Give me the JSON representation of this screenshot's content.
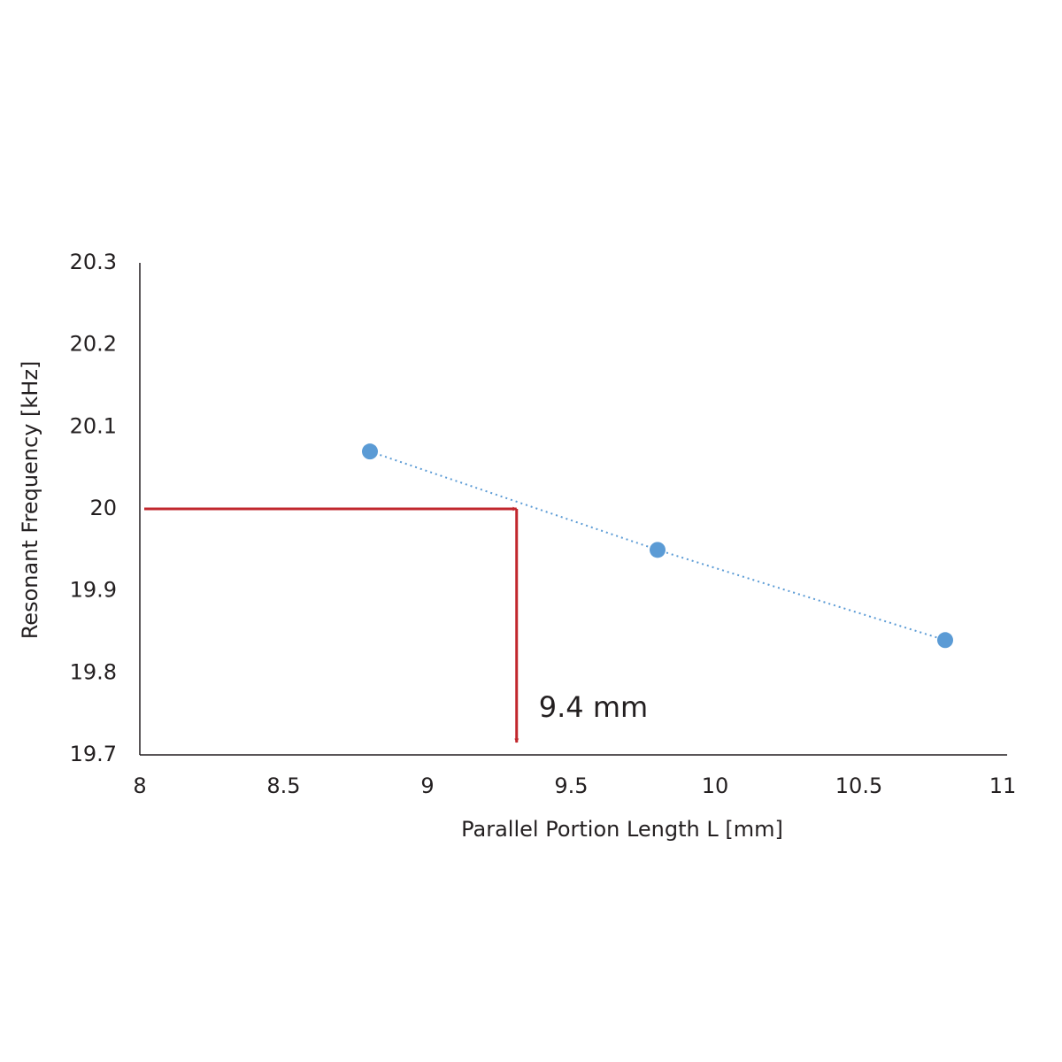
{
  "chart_data": {
    "type": "scatter",
    "x_label": "Parallel Portion Length L [mm]",
    "y_label": "Resonant Frequency [kHz]",
    "series": [
      {
        "color": "#5b9bd5",
        "x": [
          8.8,
          9.8,
          10.8
        ],
        "values": [
          20.07,
          19.95,
          19.84
        ]
      }
    ],
    "trendline": true,
    "xlim": [
      8,
      11
    ],
    "xticks": [
      8,
      8.5,
      9,
      9.5,
      10,
      10.5,
      11
    ],
    "ylim": [
      19.7,
      20.3
    ],
    "yticks": [
      19.7,
      19.8,
      19.9,
      20,
      20.1,
      20.2,
      20.3
    ],
    "grid": false,
    "annotation": {
      "text": "9.4 mm",
      "x": 9.31,
      "y": 20,
      "color": "#c1272d"
    }
  }
}
